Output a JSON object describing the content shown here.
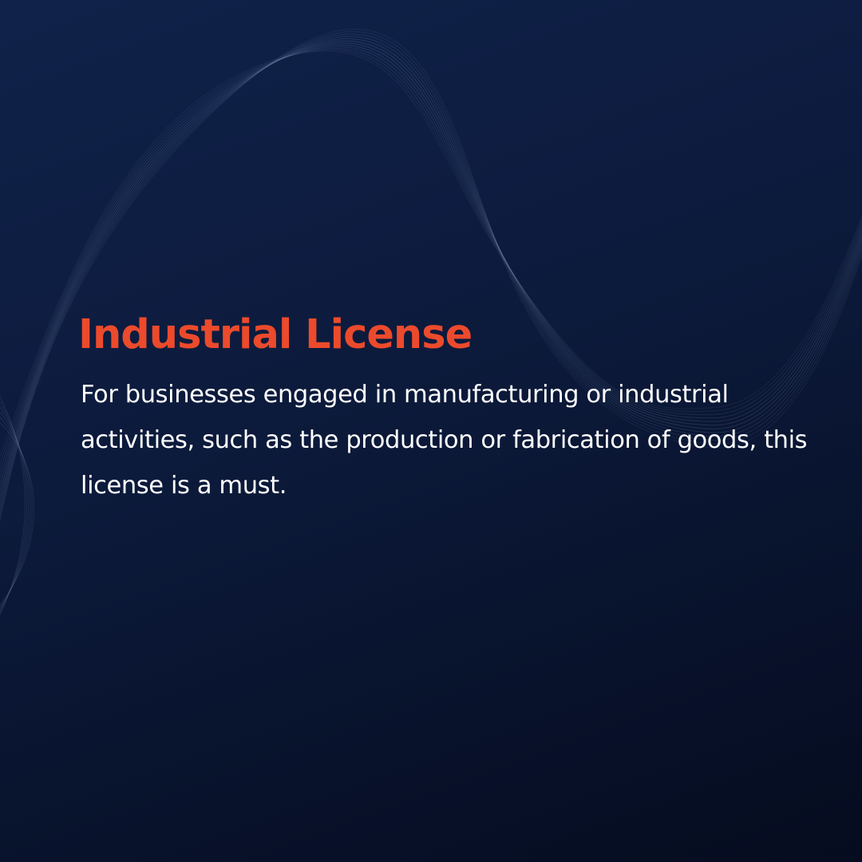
{
  "slide": {
    "title": "Industrial License",
    "body": "For businesses engaged in manufacturing or industrial activities, such as the production or fabrication of goods, this license is a must."
  },
  "colors": {
    "background_top": "#10224a",
    "background_bottom": "#050c1f",
    "title": "#ec4a2c",
    "body_text": "#ffffff",
    "wave_lines": "#8fa1c6"
  }
}
